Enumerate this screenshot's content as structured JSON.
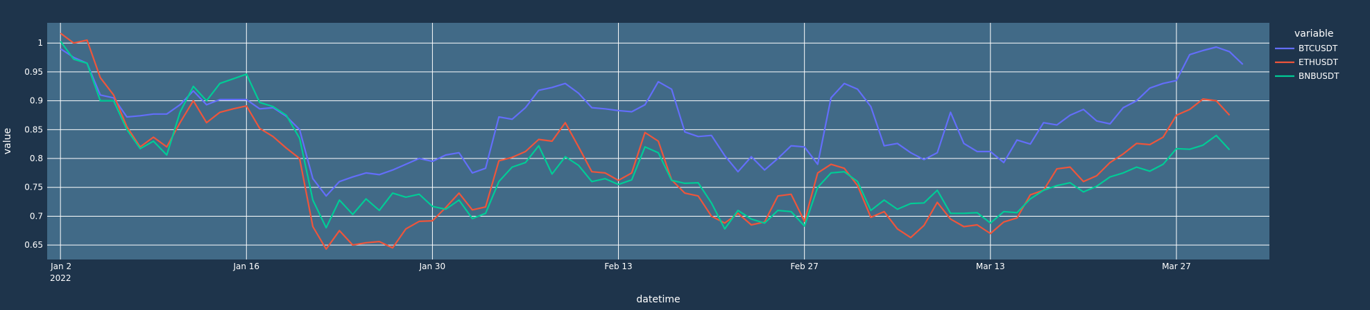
{
  "chart_data": {
    "type": "line",
    "xlabel": "datetime",
    "ylabel": "value",
    "xlim": [
      "2022-01-01",
      "2022-04-03"
    ],
    "ylim": [
      0.625,
      1.035
    ],
    "x_tick_labels": [
      "Jan 2",
      "Jan 16",
      "Jan 30",
      "Feb 13",
      "Feb 27",
      "Mar 13",
      "Mar 27"
    ],
    "x_tick_dates": [
      "2022-01-02",
      "2022-01-16",
      "2022-01-30",
      "2022-02-13",
      "2022-02-27",
      "2022-03-13",
      "2022-03-27"
    ],
    "x_year_label": "2022",
    "y_ticks": [
      0.65,
      0.7,
      0.75,
      0.8,
      0.85,
      0.9,
      0.95,
      1
    ],
    "y_tick_labels": [
      "0.65",
      "0.7",
      "0.75",
      "0.8",
      "0.85",
      "0.9",
      "0.95",
      "1"
    ],
    "grid": true,
    "legend": {
      "title": "variable",
      "placement": "right"
    },
    "x_start": "2022-01-02",
    "x_step_days": 1,
    "series": [
      {
        "name": "BTCUSDT",
        "color": "#636efa",
        "values": [
          0.99,
          0.975,
          0.965,
          0.91,
          0.905,
          0.872,
          0.874,
          0.877,
          0.877,
          0.893,
          0.917,
          0.893,
          0.902,
          0.902,
          0.902,
          0.886,
          0.888,
          0.873,
          0.85,
          0.765,
          0.735,
          0.76,
          0.768,
          0.775,
          0.772,
          0.78,
          0.79,
          0.8,
          0.795,
          0.806,
          0.81,
          0.775,
          0.783,
          0.872,
          0.868,
          0.888,
          0.918,
          0.923,
          0.93,
          0.913,
          0.888,
          0.886,
          0.883,
          0.881,
          0.893,
          0.933,
          0.92,
          0.846,
          0.838,
          0.84,
          0.805,
          0.777,
          0.803,
          0.78,
          0.8,
          0.822,
          0.82,
          0.79,
          0.905,
          0.93,
          0.92,
          0.89,
          0.822,
          0.826,
          0.81,
          0.798,
          0.81,
          0.88,
          0.826,
          0.812,
          0.812,
          0.793,
          0.832,
          0.825,
          0.862,
          0.858,
          0.875,
          0.885,
          0.865,
          0.86,
          0.888,
          0.9,
          0.922,
          0.93,
          0.935,
          0.98,
          0.987,
          0.993,
          0.985,
          0.963
        ]
      },
      {
        "name": "ETHUSDT",
        "color": "#ef553b",
        "values": [
          1.017,
          1.0,
          1.005,
          0.94,
          0.91,
          0.855,
          0.82,
          0.837,
          0.82,
          0.862,
          0.9,
          0.862,
          0.88,
          0.886,
          0.891,
          0.852,
          0.838,
          0.818,
          0.8,
          0.682,
          0.643,
          0.675,
          0.65,
          0.654,
          0.656,
          0.645,
          0.678,
          0.691,
          0.692,
          0.715,
          0.74,
          0.711,
          0.716,
          0.796,
          0.802,
          0.812,
          0.833,
          0.83,
          0.862,
          0.82,
          0.777,
          0.775,
          0.762,
          0.775,
          0.845,
          0.83,
          0.763,
          0.74,
          0.735,
          0.7,
          0.688,
          0.705,
          0.685,
          0.69,
          0.735,
          0.738,
          0.691,
          0.775,
          0.79,
          0.783,
          0.753,
          0.698,
          0.708,
          0.678,
          0.663,
          0.684,
          0.724,
          0.695,
          0.682,
          0.685,
          0.67,
          0.69,
          0.697,
          0.737,
          0.745,
          0.782,
          0.785,
          0.76,
          0.77,
          0.793,
          0.808,
          0.826,
          0.824,
          0.837,
          0.875,
          0.885,
          0.903,
          0.9,
          0.875
        ]
      },
      {
        "name": "BNBUSDT",
        "color": "#00cc96",
        "values": [
          1.003,
          0.972,
          0.965,
          0.9,
          0.9,
          0.85,
          0.817,
          0.83,
          0.806,
          0.88,
          0.925,
          0.9,
          0.93,
          0.938,
          0.946,
          0.897,
          0.89,
          0.875,
          0.835,
          0.728,
          0.68,
          0.728,
          0.703,
          0.73,
          0.71,
          0.74,
          0.733,
          0.738,
          0.717,
          0.712,
          0.728,
          0.696,
          0.705,
          0.76,
          0.785,
          0.793,
          0.822,
          0.773,
          0.803,
          0.788,
          0.76,
          0.765,
          0.755,
          0.763,
          0.82,
          0.81,
          0.762,
          0.757,
          0.758,
          0.723,
          0.678,
          0.71,
          0.695,
          0.688,
          0.71,
          0.708,
          0.683,
          0.75,
          0.775,
          0.777,
          0.76,
          0.71,
          0.728,
          0.712,
          0.722,
          0.723,
          0.745,
          0.705,
          0.705,
          0.706,
          0.688,
          0.708,
          0.706,
          0.73,
          0.745,
          0.753,
          0.758,
          0.742,
          0.752,
          0.768,
          0.775,
          0.785,
          0.778,
          0.79,
          0.817,
          0.816,
          0.823,
          0.84,
          0.815
        ]
      }
    ]
  }
}
